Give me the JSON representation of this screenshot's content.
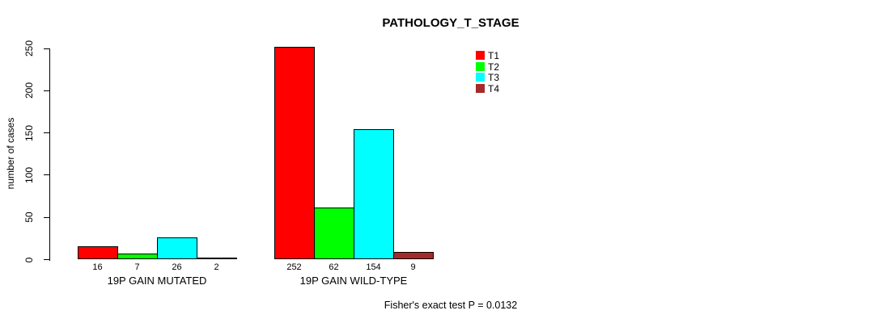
{
  "chart_data": {
    "type": "bar",
    "title": "PATHOLOGY_T_STAGE",
    "ylabel": "number of cases",
    "xlabel": "",
    "ylim": [
      0,
      250
    ],
    "yticks": [
      0,
      50,
      100,
      150,
      200,
      250
    ],
    "grid": false,
    "legend_position": "top-right",
    "categories": [
      "19P GAIN MUTATED",
      "19P GAIN WILD-TYPE"
    ],
    "series": [
      {
        "name": "T1",
        "color": "#ff0000",
        "values": [
          16,
          252
        ]
      },
      {
        "name": "T2",
        "color": "#00ff00",
        "values": [
          7,
          62
        ]
      },
      {
        "name": "T3",
        "color": "#00ffff",
        "values": [
          26,
          154
        ]
      },
      {
        "name": "T4",
        "color": "#a52a2a",
        "values": [
          2,
          9
        ]
      }
    ],
    "bar_value_labels": [
      [
        "16",
        "7",
        "26",
        "2"
      ],
      [
        "252",
        "62",
        "154",
        "9"
      ]
    ],
    "annotation": "Fisher's exact test P = 0.0132"
  },
  "colors": {
    "background": "#ffffff",
    "axis": "#000000",
    "text": "#000000"
  }
}
